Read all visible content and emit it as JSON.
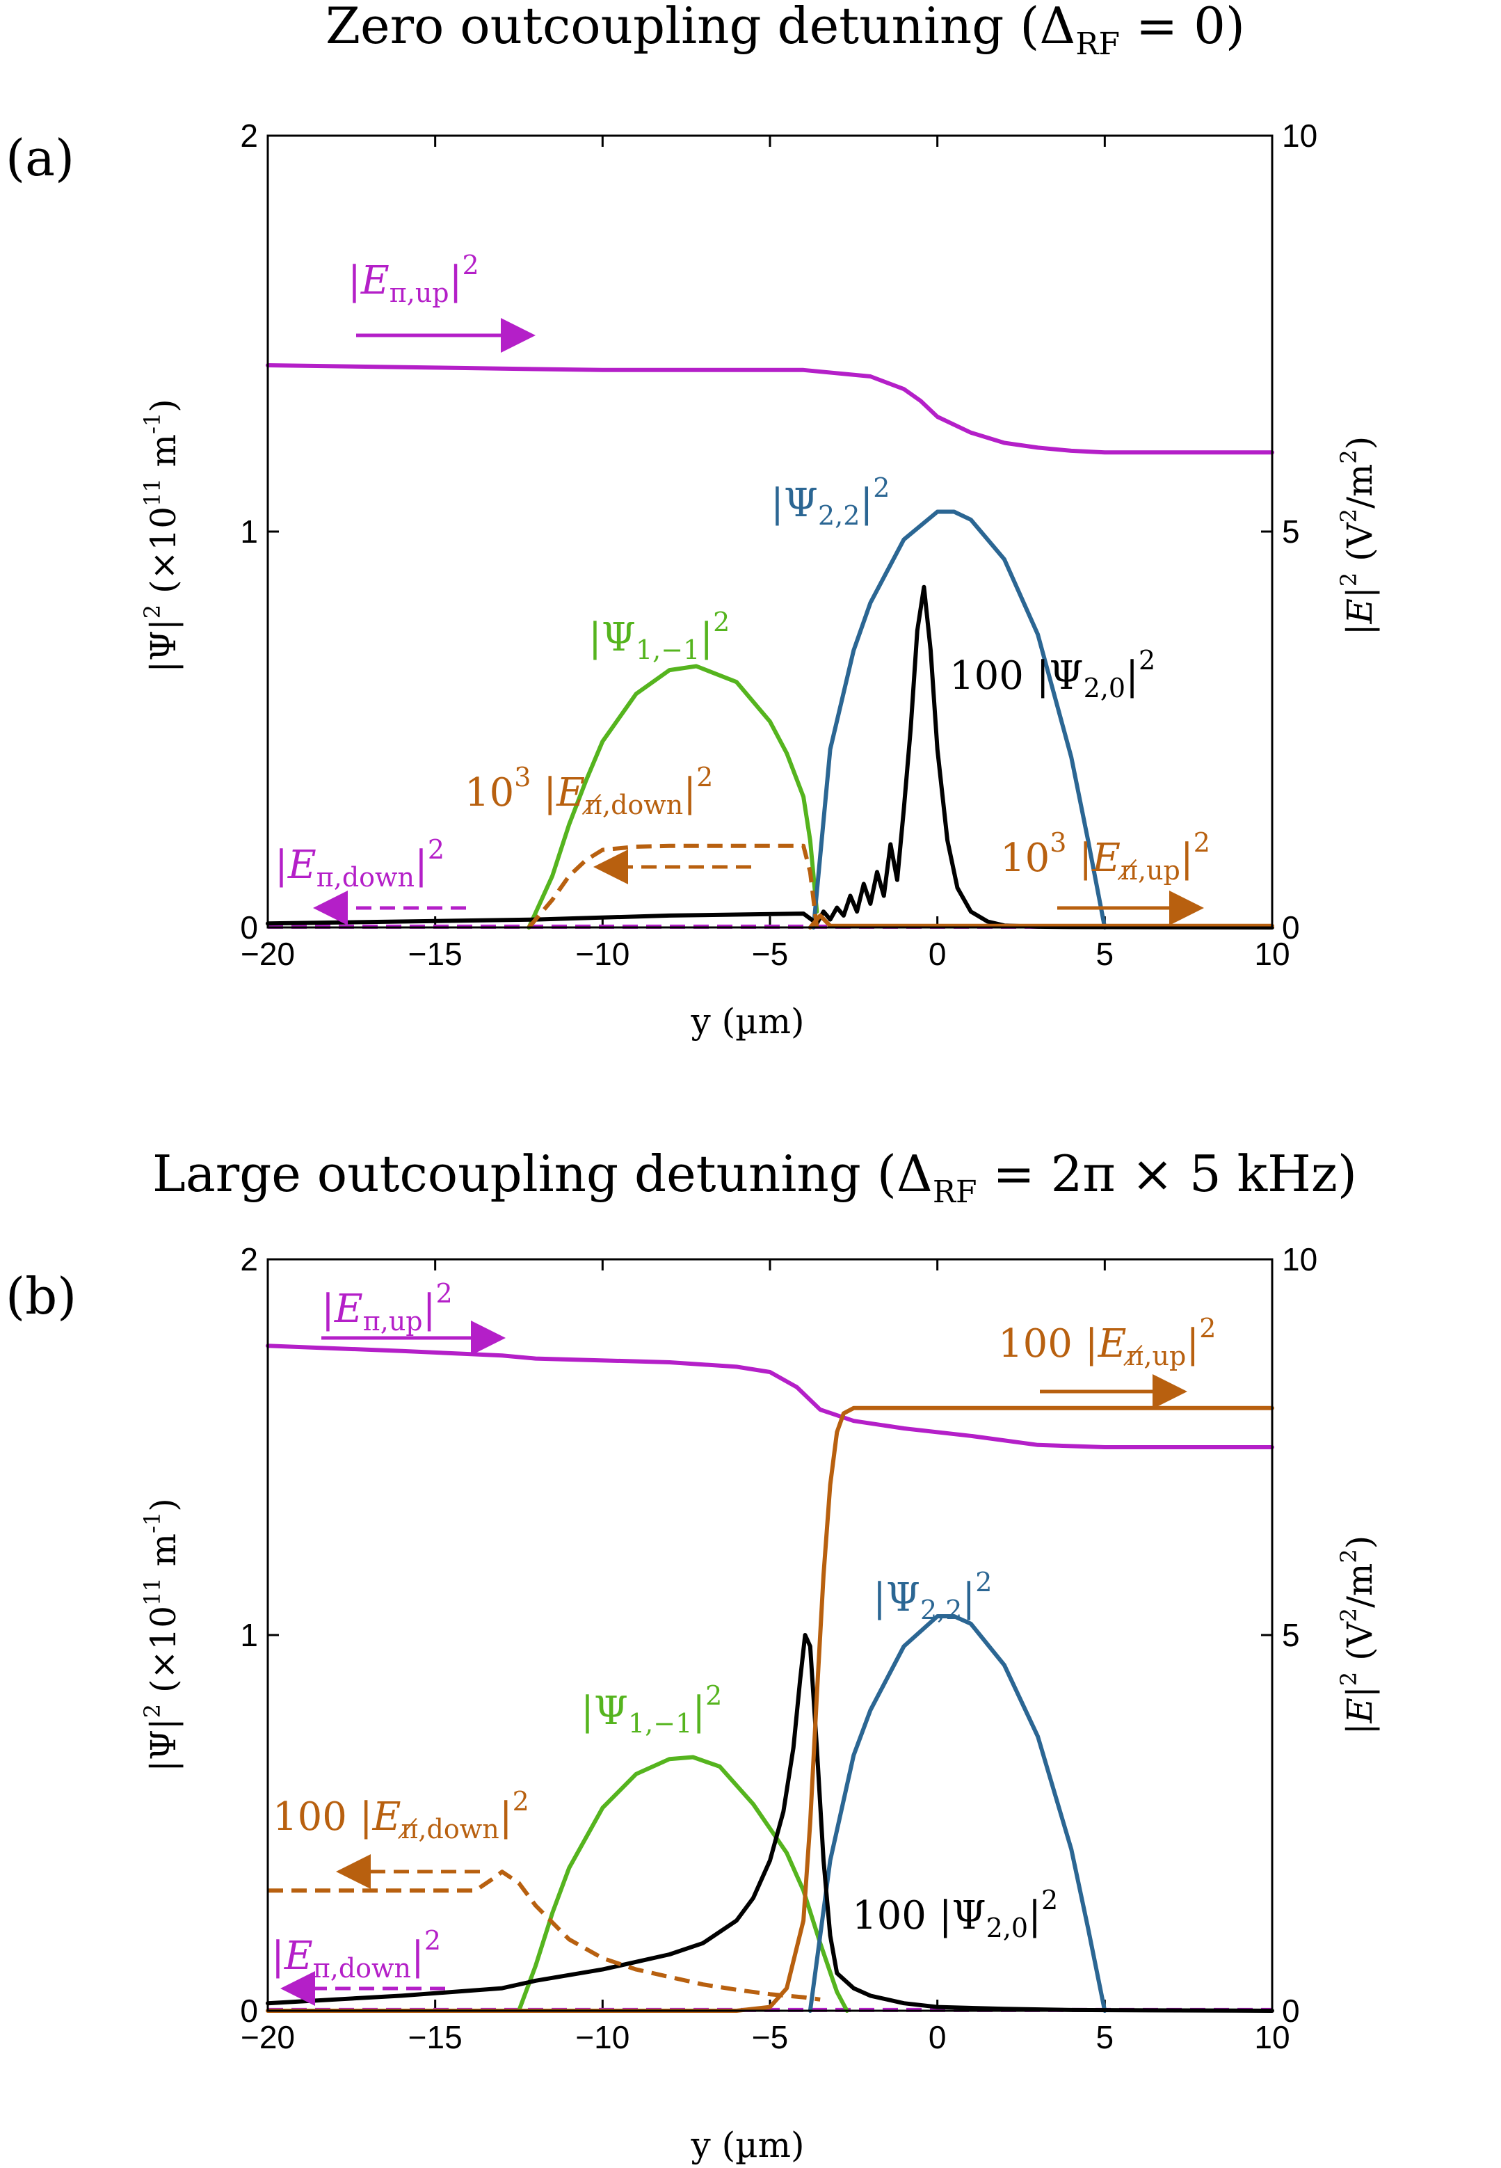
{
  "chart_data": [
    {
      "type": "line",
      "panel": "(a)",
      "title": "Zero outcoupling detuning (ΔRF = 0)",
      "xlabel": "y (µm)",
      "ylabel_left": "|Ψ|² (×10¹¹ m⁻¹)",
      "ylabel_right": "|E|² (V²/m²)",
      "xlim": [
        -20,
        10
      ],
      "ylim_left": [
        0,
        2
      ],
      "ylim_right": [
        0,
        10
      ],
      "xticks": [
        -20,
        -15,
        -10,
        -5,
        0,
        5,
        10
      ],
      "yticks_left": [
        0,
        1,
        2
      ],
      "yticks_right": [
        0,
        5,
        10
      ],
      "series": [
        {
          "label": "|Eπ,up|²",
          "axis": "right",
          "color": "#b41fc8",
          "style": "solid",
          "arrow": "right",
          "x": [
            -20,
            -15,
            -10,
            -5,
            -4,
            -2,
            -1,
            -0.5,
            0,
            1,
            2,
            3,
            4,
            5,
            10
          ],
          "y": [
            7.1,
            7.07,
            7.04,
            7.04,
            7.04,
            6.96,
            6.8,
            6.65,
            6.45,
            6.25,
            6.12,
            6.06,
            6.02,
            6.0,
            6.0
          ]
        },
        {
          "label": "|Eπ,down|²",
          "axis": "right",
          "color": "#b41fc8",
          "style": "dashed",
          "arrow": "left",
          "x": [
            -20,
            10
          ],
          "y": [
            0.01,
            0.01
          ]
        },
        {
          "label": "|Ψ1,−1|²",
          "axis": "left",
          "color": "#55b41e",
          "style": "solid",
          "x": [
            -12.2,
            -11.5,
            -11,
            -10.5,
            -10,
            -9,
            -8,
            -7.2,
            -6,
            -5,
            -4.5,
            -4,
            -3.8,
            -3.6
          ],
          "y": [
            0.0,
            0.13,
            0.26,
            0.37,
            0.47,
            0.59,
            0.65,
            0.66,
            0.62,
            0.52,
            0.44,
            0.33,
            0.22,
            0.04
          ]
        },
        {
          "label": "|Ψ2,2|²",
          "axis": "left",
          "color": "#2b6693",
          "style": "solid",
          "x": [
            -3.7,
            -3.2,
            -2.5,
            -2,
            -1,
            0,
            0.5,
            1,
            2,
            3,
            4,
            4.5,
            5
          ],
          "y": [
            0.0,
            0.45,
            0.7,
            0.82,
            0.98,
            1.05,
            1.05,
            1.03,
            0.93,
            0.74,
            0.43,
            0.22,
            0.0
          ]
        },
        {
          "label": "100|Ψ2,0|²",
          "axis": "left",
          "color": "#000000",
          "style": "solid",
          "x": [
            -20,
            -12,
            -8,
            -4,
            -3.6,
            -3.4,
            -3.2,
            -3,
            -2.8,
            -2.6,
            -2.4,
            -2.2,
            -2,
            -1.8,
            -1.6,
            -1.4,
            -1.2,
            -1,
            -0.8,
            -0.6,
            -0.4,
            -0.2,
            0,
            0.3,
            0.6,
            1,
            1.5,
            2,
            3,
            4,
            10
          ],
          "y": [
            0.01,
            0.02,
            0.03,
            0.035,
            0.01,
            0.04,
            0.02,
            0.05,
            0.03,
            0.08,
            0.04,
            0.11,
            0.06,
            0.14,
            0.08,
            0.21,
            0.12,
            0.3,
            0.5,
            0.75,
            0.86,
            0.7,
            0.45,
            0.22,
            0.1,
            0.04,
            0.015,
            0.005,
            0.002,
            0.001,
            0.0
          ]
        },
        {
          "label": "10³|Eπ̸,down|²",
          "axis": "right",
          "color": "#b8600f",
          "style": "dashed",
          "arrow": "left",
          "x": [
            -12.2,
            -11.5,
            -11,
            -10.5,
            -10,
            -9,
            -8,
            -6,
            -5,
            -4,
            -3.8,
            -3.6
          ],
          "y": [
            0.0,
            0.35,
            0.65,
            0.85,
            0.98,
            1.02,
            1.03,
            1.03,
            1.03,
            1.03,
            0.7,
            0.0
          ]
        },
        {
          "label": "10³|Eπ̸,up|²",
          "axis": "right",
          "color": "#b8600f",
          "style": "solid",
          "arrow": "right",
          "x": [
            -3.8,
            -3.5,
            -3.2,
            10
          ],
          "y": [
            0.0,
            0.15,
            0.02,
            0.02
          ]
        }
      ]
    },
    {
      "type": "line",
      "panel": "(b)",
      "title": "Large outcoupling detuning (ΔRF = 2π × 5 kHz)",
      "xlabel": "y (µm)",
      "ylabel_left": "|Ψ|² (×10¹¹ m⁻¹)",
      "ylabel_right": "|E|² (V²/m²)",
      "xlim": [
        -20,
        10
      ],
      "ylim_left": [
        0,
        2
      ],
      "ylim_right": [
        0,
        10
      ],
      "xticks": [
        -20,
        -15,
        -10,
        -5,
        0,
        5,
        10
      ],
      "yticks_left": [
        0,
        1,
        2
      ],
      "yticks_right": [
        0,
        5,
        10
      ],
      "series": [
        {
          "label": "|Eπ,up|²",
          "axis": "right",
          "color": "#b41fc8",
          "style": "solid",
          "arrow": "right",
          "x": [
            -20,
            -16,
            -13,
            -12,
            -8,
            -6,
            -5,
            -4.2,
            -3.5,
            -2.5,
            -1,
            1,
            3,
            5,
            10
          ],
          "y": [
            8.85,
            8.78,
            8.72,
            8.68,
            8.63,
            8.57,
            8.5,
            8.3,
            8.0,
            7.85,
            7.75,
            7.65,
            7.53,
            7.5,
            7.5
          ]
        },
        {
          "label": "|Eπ,down|²",
          "axis": "right",
          "color": "#b41fc8",
          "style": "dashed",
          "arrow": "left",
          "x": [
            -20,
            10
          ],
          "y": [
            0.01,
            0.01
          ]
        },
        {
          "label": "|Ψ1,−1|²",
          "axis": "left",
          "color": "#55b41e",
          "style": "solid",
          "x": [
            -12.5,
            -12,
            -11.5,
            -11,
            -10,
            -9,
            -8,
            -7.3,
            -6.5,
            -5.5,
            -4.5,
            -4,
            -3.5,
            -3,
            -2.7
          ],
          "y": [
            0.0,
            0.12,
            0.26,
            0.38,
            0.54,
            0.63,
            0.67,
            0.675,
            0.65,
            0.55,
            0.42,
            0.32,
            0.18,
            0.05,
            0.0
          ]
        },
        {
          "label": "|Ψ2,2|²",
          "axis": "left",
          "color": "#2b6693",
          "style": "solid",
          "x": [
            -3.8,
            -3.2,
            -2.5,
            -2,
            -1,
            0,
            0.5,
            1,
            2,
            3,
            4,
            4.5,
            5
          ],
          "y": [
            0.0,
            0.4,
            0.68,
            0.8,
            0.97,
            1.05,
            1.05,
            1.03,
            0.92,
            0.73,
            0.43,
            0.22,
            0.0
          ]
        },
        {
          "label": "100|Ψ2,0|²",
          "axis": "left",
          "color": "#000000",
          "style": "solid",
          "x": [
            -20,
            -16,
            -13,
            -12,
            -10,
            -8,
            -7,
            -6,
            -5.5,
            -5,
            -4.6,
            -4.3,
            -4.1,
            -3.95,
            -3.8,
            -3.6,
            -3.4,
            -3.2,
            -3,
            -2.5,
            -2,
            -1,
            0,
            2,
            4,
            10
          ],
          "y": [
            0.02,
            0.04,
            0.06,
            0.08,
            0.11,
            0.15,
            0.18,
            0.24,
            0.3,
            0.4,
            0.53,
            0.7,
            0.88,
            1.0,
            0.97,
            0.7,
            0.4,
            0.2,
            0.1,
            0.06,
            0.04,
            0.02,
            0.01,
            0.005,
            0.002,
            0.0
          ]
        },
        {
          "label": "100|Eπ̸,down|²",
          "axis": "right",
          "color": "#b8600f",
          "style": "dashed",
          "arrow": "left",
          "x": [
            -20,
            -15,
            -13.8,
            -13.3,
            -13,
            -12.5,
            -12,
            -11,
            -10,
            -9,
            -8,
            -7,
            -6,
            -5,
            -4,
            -3.5
          ],
          "y": [
            1.6,
            1.6,
            1.6,
            1.75,
            1.85,
            1.7,
            1.4,
            0.95,
            0.7,
            0.55,
            0.45,
            0.35,
            0.28,
            0.22,
            0.18,
            0.15
          ]
        },
        {
          "label": "100|Eπ̸,up|²",
          "axis": "right",
          "color": "#b8600f",
          "style": "solid",
          "arrow": "right",
          "x": [
            -20,
            -6,
            -5,
            -4.5,
            -4,
            -3.8,
            -3.6,
            -3.4,
            -3.2,
            -3,
            -2.8,
            -2.5,
            -2,
            10
          ],
          "y": [
            0.0,
            0.0,
            0.05,
            0.3,
            1.2,
            2.5,
            4.2,
            5.8,
            7.0,
            7.7,
            7.95,
            8.02,
            8.02,
            8.02
          ]
        }
      ]
    }
  ]
}
